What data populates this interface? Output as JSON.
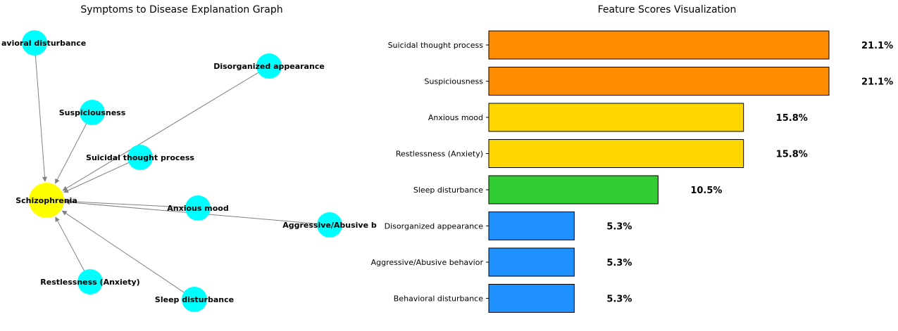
{
  "chart_data": [
    {
      "type": "network",
      "title": "Symptoms to Disease Explanation Graph",
      "target": "Schizophrenia",
      "target_color": "#ffff00",
      "node_color": "#00ffff",
      "nodes": [
        {
          "label": "Behavioral disturbance",
          "shown_text": "avioral disturbance"
        },
        {
          "label": "Disorganized appearance",
          "shown_text": "Disorganized appearance"
        },
        {
          "label": "Suspiciousness",
          "shown_text": "Suspiciousness"
        },
        {
          "label": "Suicidal thought process",
          "shown_text": "Suicidal thought process"
        },
        {
          "label": "Schizophrenia",
          "shown_text": "Schizophrenia"
        },
        {
          "label": "Anxious mood",
          "shown_text": "Anxious mood"
        },
        {
          "label": "Aggressive/Abusive behavior",
          "shown_text": "Aggressive/Abusive b"
        },
        {
          "label": "Restlessness (Anxiety)",
          "shown_text": "Restlessness (Anxiety)"
        },
        {
          "label": "Sleep disturbance",
          "shown_text": "Sleep disturbance"
        }
      ],
      "edges": [
        {
          "from": "Behavioral disturbance",
          "to": "Schizophrenia"
        },
        {
          "from": "Disorganized appearance",
          "to": "Schizophrenia"
        },
        {
          "from": "Suspiciousness",
          "to": "Schizophrenia"
        },
        {
          "from": "Suicidal thought process",
          "to": "Schizophrenia"
        },
        {
          "from": "Anxious mood",
          "to": "Schizophrenia"
        },
        {
          "from": "Aggressive/Abusive behavior",
          "to": "Schizophrenia"
        },
        {
          "from": "Restlessness (Anxiety)",
          "to": "Schizophrenia"
        },
        {
          "from": "Sleep disturbance",
          "to": "Schizophrenia"
        }
      ]
    },
    {
      "type": "bar",
      "orientation": "horizontal",
      "title": "Feature Scores Visualization",
      "categories": [
        "Suicidal thought process",
        "Suspiciousness",
        "Anxious mood",
        "Restlessness (Anxiety)",
        "Sleep disturbance",
        "Disorganized appearance",
        "Aggressive/Abusive behavior",
        "Behavioral disturbance"
      ],
      "values": [
        21.1,
        21.1,
        15.8,
        15.8,
        10.5,
        5.3,
        5.3,
        5.3
      ],
      "value_labels": [
        "21.1%",
        "21.1%",
        "15.8%",
        "15.8%",
        "10.5%",
        "5.3%",
        "5.3%",
        "5.3%"
      ],
      "colors": [
        "#ff8c00",
        "#ff8c00",
        "#ffd700",
        "#ffd700",
        "#32cd32",
        "#1e90ff",
        "#1e90ff",
        "#1e90ff"
      ],
      "x_axis_visible": false,
      "grid": false
    }
  ]
}
